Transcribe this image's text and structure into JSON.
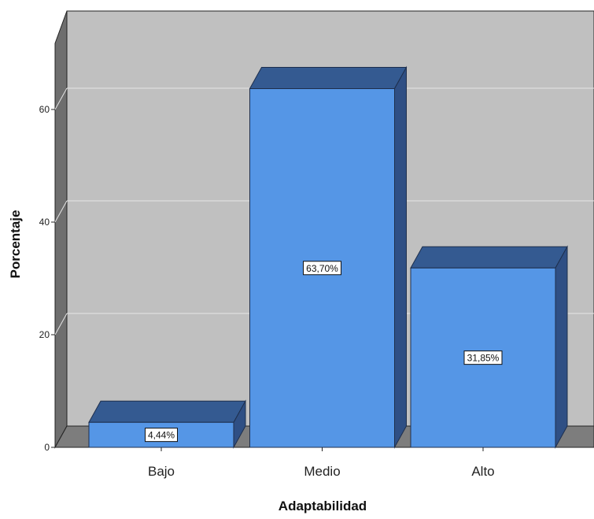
{
  "chart_data": {
    "type": "bar",
    "style": "3d",
    "categories": [
      "Bajo",
      "Medio",
      "Alto"
    ],
    "values": [
      4.44,
      63.7,
      31.85
    ],
    "data_labels": [
      "4,44%",
      "63,70%",
      "31,85%"
    ],
    "xlabel": "Adaptabilidad",
    "ylabel": "Porcentaje",
    "yticks": [
      0,
      20,
      40,
      60
    ],
    "ylim": [
      0,
      70
    ],
    "grid": true,
    "legend": "none"
  },
  "colors": {
    "bar_front": "#5596e6",
    "bar_top": "#345a91",
    "bar_side": "#2f4f84",
    "plot_background": "#c0c0c0",
    "wall_left": "#6e6e6e",
    "floor": "#7d7d7d",
    "gridline": "#e6e6e6",
    "label_box": "#ffffff"
  }
}
